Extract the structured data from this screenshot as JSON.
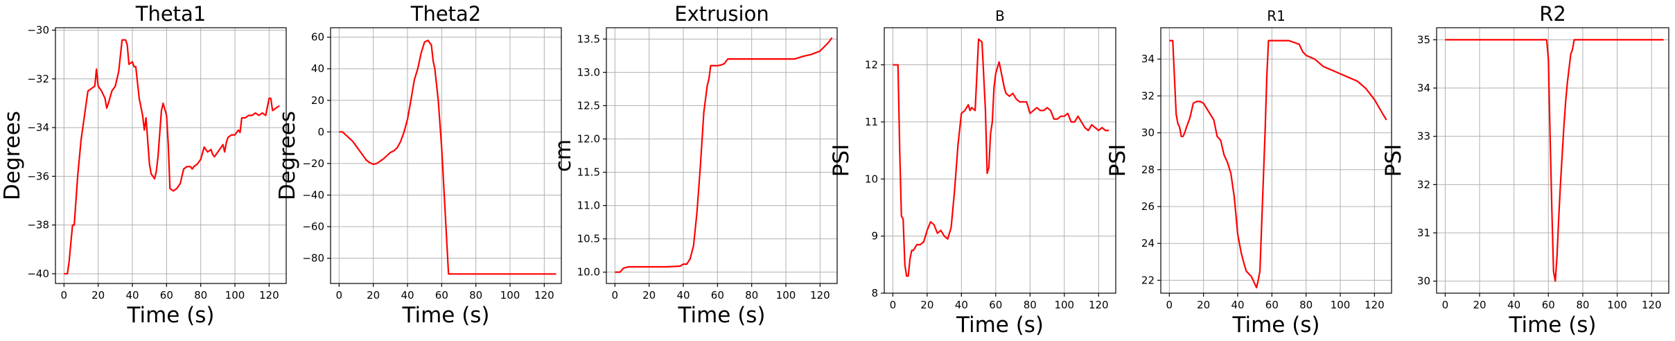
{
  "colors": {
    "line": "#ff0000",
    "grid": "#b0b0b0"
  },
  "chart_data": [
    {
      "type": "line",
      "title": "Theta1",
      "xlabel": "Time (s)",
      "ylabel": "Degrees",
      "xlim": [
        -5,
        130
      ],
      "ylim": [
        -40.4,
        -29.9
      ],
      "xticks": [
        0,
        20,
        40,
        60,
        80,
        100,
        120
      ],
      "yticks": [
        -40,
        -38,
        -36,
        -34,
        -32,
        -30
      ],
      "grid": true,
      "series": [
        {
          "color": "#ff0000",
          "x": [
            0,
            2,
            3,
            5,
            6,
            7,
            8,
            10,
            12,
            14,
            16,
            18,
            19,
            20,
            22,
            24,
            25,
            26,
            28,
            30,
            32,
            34,
            36,
            37,
            38,
            40,
            41,
            42,
            44,
            46,
            47,
            48,
            50,
            51,
            52,
            53,
            54,
            55,
            57,
            58,
            60,
            61,
            62,
            64,
            66,
            68,
            70,
            72,
            74,
            75,
            76,
            78,
            80,
            82,
            84,
            86,
            87,
            88,
            90,
            92,
            93,
            94,
            95,
            96,
            98,
            100,
            102,
            103,
            104,
            106,
            108,
            110,
            112,
            114,
            116,
            118,
            120,
            121,
            122,
            124,
            126
          ],
          "y": [
            -40,
            -40,
            -39.5,
            -38,
            -38,
            -37,
            -36,
            -34.5,
            -33.5,
            -32.5,
            -32.4,
            -32.3,
            -31.6,
            -32.3,
            -32.5,
            -32.8,
            -33.2,
            -33,
            -32.5,
            -32.3,
            -31.7,
            -30.4,
            -30.4,
            -30.6,
            -31.4,
            -31.3,
            -31.5,
            -31.5,
            -32.8,
            -33.5,
            -34.1,
            -33.6,
            -35.5,
            -35.9,
            -36,
            -36.1,
            -35.8,
            -35.2,
            -33.3,
            -33.0,
            -33.5,
            -34.7,
            -36.5,
            -36.6,
            -36.5,
            -36.3,
            -35.7,
            -35.6,
            -35.6,
            -35.7,
            -35.6,
            -35.5,
            -35.3,
            -34.8,
            -35.0,
            -34.9,
            -35.1,
            -35.2,
            -35.0,
            -34.8,
            -34.7,
            -35.0,
            -34.6,
            -34.4,
            -34.3,
            -34.3,
            -34.1,
            -34.2,
            -33.6,
            -33.6,
            -33.5,
            -33.5,
            -33.4,
            -33.5,
            -33.4,
            -33.5,
            -32.8,
            -32.8,
            -33.3,
            -33.2,
            -33.1
          ]
        }
      ]
    },
    {
      "type": "line",
      "title": "Theta2",
      "xlabel": "Time (s)",
      "ylabel": "Degrees",
      "xlim": [
        -5,
        130
      ],
      "ylim": [
        -96,
        66
      ],
      "xticks": [
        0,
        20,
        40,
        60,
        80,
        100,
        120
      ],
      "yticks": [
        -80,
        -60,
        -40,
        -20,
        0,
        20,
        40,
        60
      ],
      "grid": true,
      "series": [
        {
          "color": "#ff0000",
          "x": [
            0,
            2,
            4,
            6,
            8,
            10,
            12,
            14,
            16,
            18,
            20,
            22,
            24,
            26,
            28,
            30,
            32,
            34,
            36,
            38,
            40,
            42,
            44,
            46,
            48,
            50,
            52,
            54,
            55,
            56,
            58,
            60,
            62,
            64,
            70,
            80,
            90,
            100,
            110,
            120,
            127
          ],
          "y": [
            0,
            0,
            -2,
            -4,
            -6,
            -9,
            -12,
            -15,
            -18,
            -19.5,
            -20.5,
            -20,
            -18.5,
            -17,
            -15,
            -13,
            -12,
            -10,
            -6,
            0,
            8,
            20,
            33,
            40,
            50,
            57,
            58,
            55,
            45,
            40,
            20,
            -10,
            -50,
            -90,
            -90,
            -90,
            -90,
            -90,
            -90,
            -90,
            -90
          ]
        }
      ]
    },
    {
      "type": "line",
      "title": "Extrusion",
      "xlabel": "Time (s)",
      "ylabel": "cm",
      "xlim": [
        -5,
        130
      ],
      "ylim": [
        9.83,
        13.67
      ],
      "xticks": [
        0,
        20,
        40,
        60,
        80,
        100,
        120
      ],
      "yticks": [
        10.0,
        10.5,
        11.0,
        11.5,
        12.0,
        12.5,
        13.0,
        13.5
      ],
      "ytick_labels": [
        "10.0",
        "10.5",
        "11.0",
        "11.5",
        "12.0",
        "12.5",
        "13.0",
        "13.5"
      ],
      "grid": true,
      "series": [
        {
          "color": "#ff0000",
          "x": [
            0,
            3,
            5,
            8,
            10,
            20,
            30,
            38,
            40,
            42,
            44,
            46,
            48,
            50,
            52,
            54,
            55,
            56,
            58,
            60,
            62,
            64,
            66,
            70,
            80,
            90,
            100,
            105,
            110,
            115,
            120,
            125,
            127
          ],
          "y": [
            10.0,
            10.0,
            10.06,
            10.08,
            10.08,
            10.08,
            10.08,
            10.09,
            10.12,
            10.12,
            10.2,
            10.4,
            10.9,
            11.6,
            12.4,
            12.8,
            12.9,
            13.1,
            13.1,
            13.1,
            13.11,
            13.13,
            13.2,
            13.2,
            13.2,
            13.2,
            13.2,
            13.2,
            13.24,
            13.27,
            13.32,
            13.45,
            13.52
          ]
        }
      ]
    },
    {
      "type": "line",
      "title": "B",
      "xlabel": "Time (s)",
      "ylabel": "PSI",
      "xlim": [
        -5,
        130
      ],
      "ylim": [
        8.0,
        12.65
      ],
      "xticks": [
        0,
        20,
        40,
        60,
        80,
        100,
        120
      ],
      "yticks": [
        8,
        9,
        10,
        11,
        12
      ],
      "grid": true,
      "series": [
        {
          "color": "#ff0000",
          "x": [
            0,
            2,
            3,
            4,
            5,
            6,
            7,
            8,
            9,
            10,
            11,
            12,
            14,
            16,
            18,
            20,
            22,
            24,
            26,
            28,
            30,
            32,
            34,
            36,
            38,
            40,
            42,
            44,
            45,
            46,
            48,
            50,
            52,
            54,
            55,
            56,
            57,
            58,
            59,
            60,
            62,
            64,
            65,
            66,
            68,
            70,
            72,
            74,
            76,
            78,
            80,
            82,
            84,
            86,
            88,
            90,
            92,
            94,
            96,
            98,
            100,
            102,
            104,
            106,
            108,
            110,
            112,
            114,
            116,
            118,
            120,
            122,
            124,
            126
          ],
          "y": [
            12,
            12,
            12,
            10.5,
            9.35,
            9.3,
            8.5,
            8.3,
            8.3,
            8.6,
            8.75,
            8.75,
            8.85,
            8.85,
            8.9,
            9.1,
            9.25,
            9.2,
            9.05,
            9.1,
            9.0,
            8.95,
            9.15,
            9.8,
            10.6,
            11.15,
            11.2,
            11.3,
            11.2,
            11.25,
            11.2,
            12.45,
            12.4,
            11.2,
            10.1,
            10.2,
            10.8,
            11.0,
            11.6,
            11.85,
            12.05,
            11.75,
            11.6,
            11.5,
            11.45,
            11.5,
            11.4,
            11.35,
            11.35,
            11.35,
            11.15,
            11.2,
            11.25,
            11.2,
            11.2,
            11.25,
            11.2,
            11.05,
            11.05,
            11.1,
            11.1,
            11.15,
            11.0,
            11.0,
            11.1,
            11.0,
            10.9,
            10.85,
            10.95,
            10.9,
            10.85,
            10.9,
            10.85,
            10.85
          ]
        }
      ]
    },
    {
      "type": "line",
      "title": "R1",
      "xlabel": "Time (s)",
      "ylabel": "PSI",
      "xlim": [
        -5,
        130
      ],
      "ylim": [
        21.3,
        35.7
      ],
      "xticks": [
        0,
        20,
        40,
        60,
        80,
        100,
        120
      ],
      "yticks": [
        22,
        24,
        26,
        28,
        30,
        32,
        34
      ],
      "grid": true,
      "series": [
        {
          "color": "#ff0000",
          "x": [
            0,
            2,
            3,
            4,
            5,
            6,
            7,
            8,
            9,
            10,
            12,
            14,
            16,
            18,
            20,
            22,
            24,
            26,
            28,
            30,
            32,
            34,
            36,
            38,
            40,
            41,
            42,
            44,
            45,
            46,
            48,
            50,
            51,
            52,
            53,
            54,
            55,
            56,
            57,
            58,
            60,
            62,
            64,
            70,
            76,
            78,
            80,
            85,
            90,
            95,
            100,
            105,
            110,
            115,
            120,
            125,
            127
          ],
          "y": [
            35,
            35,
            33,
            31,
            30.5,
            30.3,
            29.8,
            29.8,
            30,
            30.3,
            30.8,
            31.6,
            31.7,
            31.7,
            31.6,
            31.3,
            31,
            30.7,
            29.8,
            29.6,
            28.8,
            28.4,
            27.8,
            26.5,
            24.5,
            24,
            23.5,
            22.8,
            22.5,
            22.4,
            22.2,
            21.8,
            21.6,
            22,
            22.5,
            25,
            27.5,
            30,
            33,
            35,
            35,
            35,
            35,
            35,
            34.8,
            34.4,
            34.2,
            34.0,
            33.6,
            33.4,
            33.2,
            33.0,
            32.8,
            32.4,
            31.8,
            31.0,
            30.7
          ]
        }
      ]
    },
    {
      "type": "line",
      "title": "R2",
      "xlabel": "Time (s)",
      "ylabel": "PSI",
      "xlim": [
        -5,
        130
      ],
      "ylim": [
        29.75,
        35.25
      ],
      "xticks": [
        0,
        20,
        40,
        60,
        80,
        100,
        120
      ],
      "yticks": [
        30,
        31,
        32,
        33,
        34,
        35
      ],
      "grid": true,
      "series": [
        {
          "color": "#ff0000",
          "x": [
            0,
            10,
            20,
            30,
            40,
            50,
            55,
            58,
            59,
            60,
            61,
            62,
            63,
            64,
            65,
            66,
            67,
            68,
            69,
            70,
            71,
            72,
            73,
            74,
            75,
            76,
            78,
            80,
            90,
            100,
            110,
            120,
            127
          ],
          "y": [
            35,
            35,
            35,
            35,
            35,
            35,
            35,
            35,
            35,
            34.6,
            33,
            31.5,
            30.2,
            30.0,
            30.5,
            31.3,
            32.0,
            32.6,
            33.2,
            33.7,
            34.1,
            34.4,
            34.7,
            34.8,
            35,
            35,
            35,
            35,
            35,
            35,
            35,
            35,
            35
          ]
        }
      ]
    }
  ]
}
